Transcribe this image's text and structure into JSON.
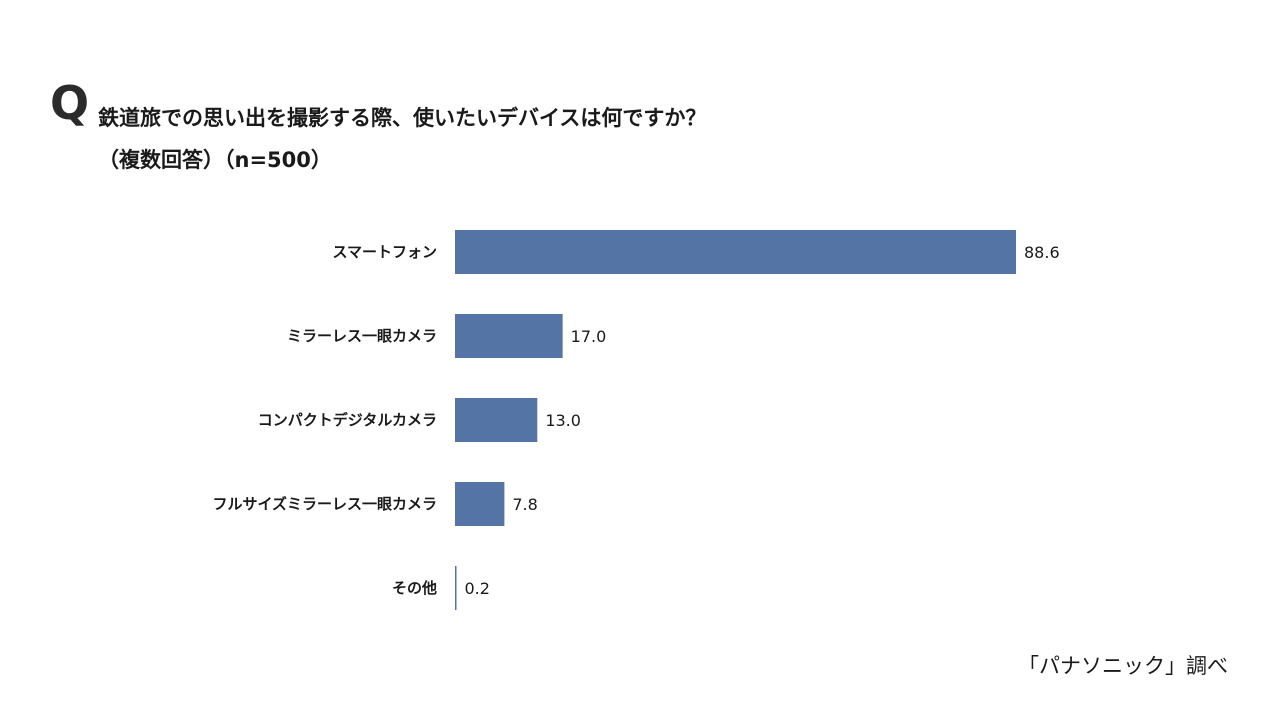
{
  "question": {
    "mark": "Q",
    "title": "鉄道旅での思い出を撮影する際、使いたいデバイスは何ですか？",
    "subtitle": "（複数回答）（n=500）"
  },
  "source": "「パナソニック」調べ",
  "colors": {
    "bar": "#5474a6"
  },
  "chart_data": {
    "type": "bar",
    "orientation": "horizontal",
    "categories": [
      "スマートフォン",
      "ミラーレス一眼カメラ",
      "コンパクトデジタルカメラ",
      "フルサイズミラーレス一眼カメラ",
      "その他"
    ],
    "values": [
      88.6,
      17.0,
      13.0,
      7.8,
      0.2
    ],
    "value_labels": [
      "88.6",
      "17.0",
      "13.0",
      "7.8",
      "0.2"
    ],
    "title": "鉄道旅での思い出を撮影する際、使いたいデバイスは何ですか？",
    "subtitle": "（複数回答）（n=500）",
    "xlabel": "",
    "ylabel": "",
    "xlim": [
      0,
      100
    ],
    "grid": false,
    "legend": "none"
  }
}
